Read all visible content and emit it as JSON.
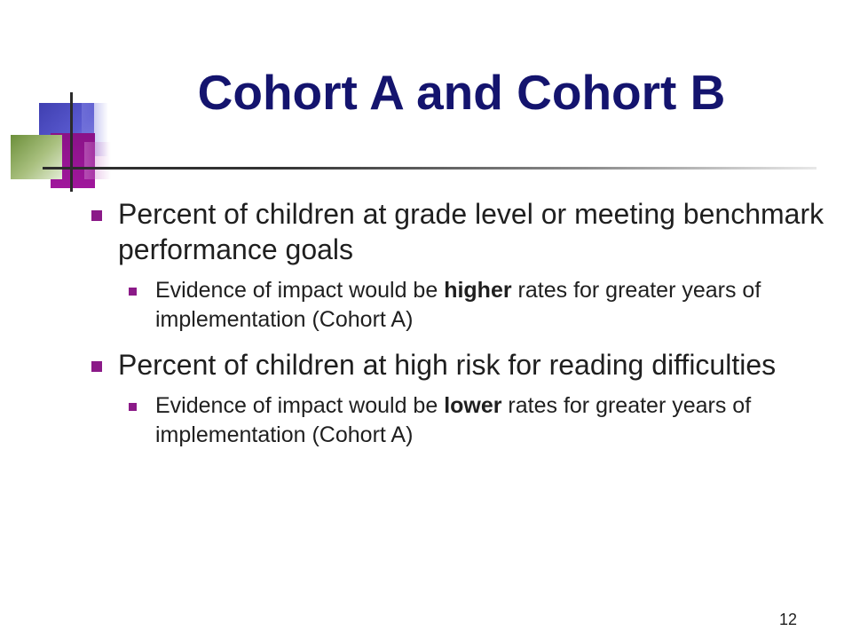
{
  "slide": {
    "title": "Cohort A and Cohort B",
    "page_number": "12",
    "accent_colors": {
      "title": "#14146e",
      "bullet": "#8b1a88",
      "decor_blue": "#4545b8",
      "decor_purple": "#8a1288",
      "decor_green": "#7a9b48"
    }
  },
  "bullets": [
    {
      "text": "Percent of children at grade level or meeting benchmark performance goals",
      "sub": {
        "before": "Evidence of impact would be ",
        "emphasis": "higher",
        "after": " rates for greater years of implementation (Cohort A)"
      }
    },
    {
      "text": "Percent of children at high risk for reading difficulties",
      "sub": {
        "before": "Evidence of impact would be ",
        "emphasis": "lower",
        "after": " rates for greater years of implementation (Cohort A)"
      }
    }
  ]
}
